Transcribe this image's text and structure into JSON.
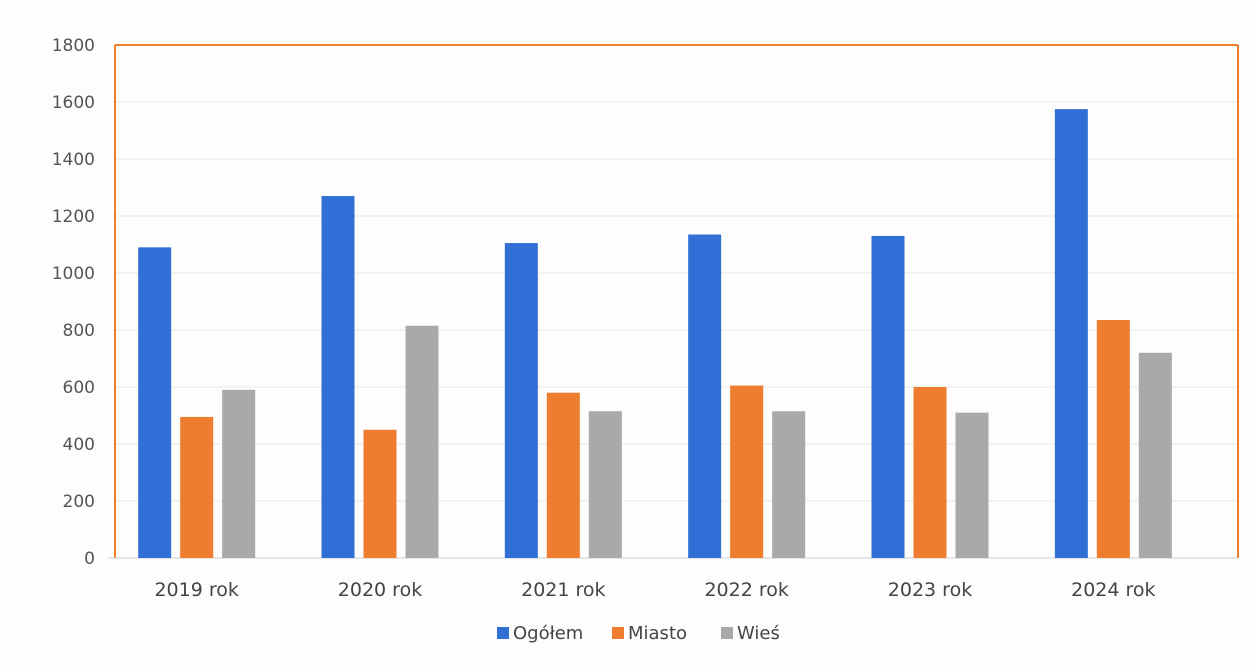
{
  "chart_data": {
    "type": "bar",
    "categories": [
      "2019 rok",
      "2020 rok",
      "2021 rok",
      "2022 rok",
      "2023 rok",
      "2024 rok"
    ],
    "series": [
      {
        "name": "Ogółem",
        "color": "#2f6fd6",
        "values": [
          1090,
          1270,
          1105,
          1135,
          1130,
          1575
        ]
      },
      {
        "name": "Miasto",
        "color": "#ee7d2f",
        "values": [
          495,
          450,
          580,
          605,
          600,
          835
        ]
      },
      {
        "name": "Wieś",
        "color": "#a9a9a9",
        "values": [
          590,
          815,
          515,
          515,
          510,
          720
        ]
      }
    ],
    "ylim": [
      0,
      1800
    ],
    "yticks": [
      0,
      200,
      400,
      600,
      800,
      1000,
      1200,
      1400,
      1600,
      1800
    ],
    "grid": true,
    "legend": "bottom",
    "frame_color": "#ee7d2f"
  }
}
